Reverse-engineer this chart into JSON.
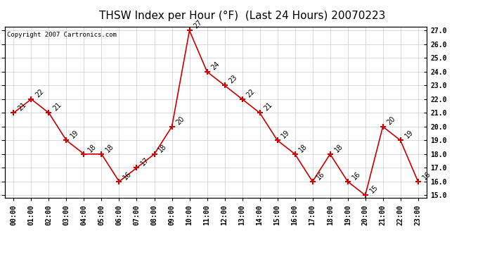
{
  "title": "THSW Index per Hour (°F)  (Last 24 Hours) 20070223",
  "copyright": "Copyright 2007 Cartronics.com",
  "hours": [
    "00:00",
    "01:00",
    "02:00",
    "03:00",
    "04:00",
    "05:00",
    "06:00",
    "07:00",
    "08:00",
    "09:00",
    "10:00",
    "11:00",
    "12:00",
    "13:00",
    "14:00",
    "15:00",
    "16:00",
    "17:00",
    "18:00",
    "19:00",
    "20:00",
    "21:00",
    "22:00",
    "23:00"
  ],
  "values": [
    21,
    22,
    21,
    19,
    18,
    18,
    16,
    17,
    18,
    20,
    27,
    24,
    23,
    22,
    21,
    19,
    18,
    16,
    18,
    16,
    15,
    20,
    19,
    16
  ],
  "line_color": "#cc0000",
  "marker_color": "#cc0000",
  "bg_color": "#ffffff",
  "grid_color": "#cccccc",
  "ylim_min": 15.0,
  "ylim_max": 27.0,
  "ytick_step": 1.0,
  "title_fontsize": 11,
  "tick_fontsize": 7,
  "annotation_fontsize": 7,
  "copyright_fontsize": 6.5
}
